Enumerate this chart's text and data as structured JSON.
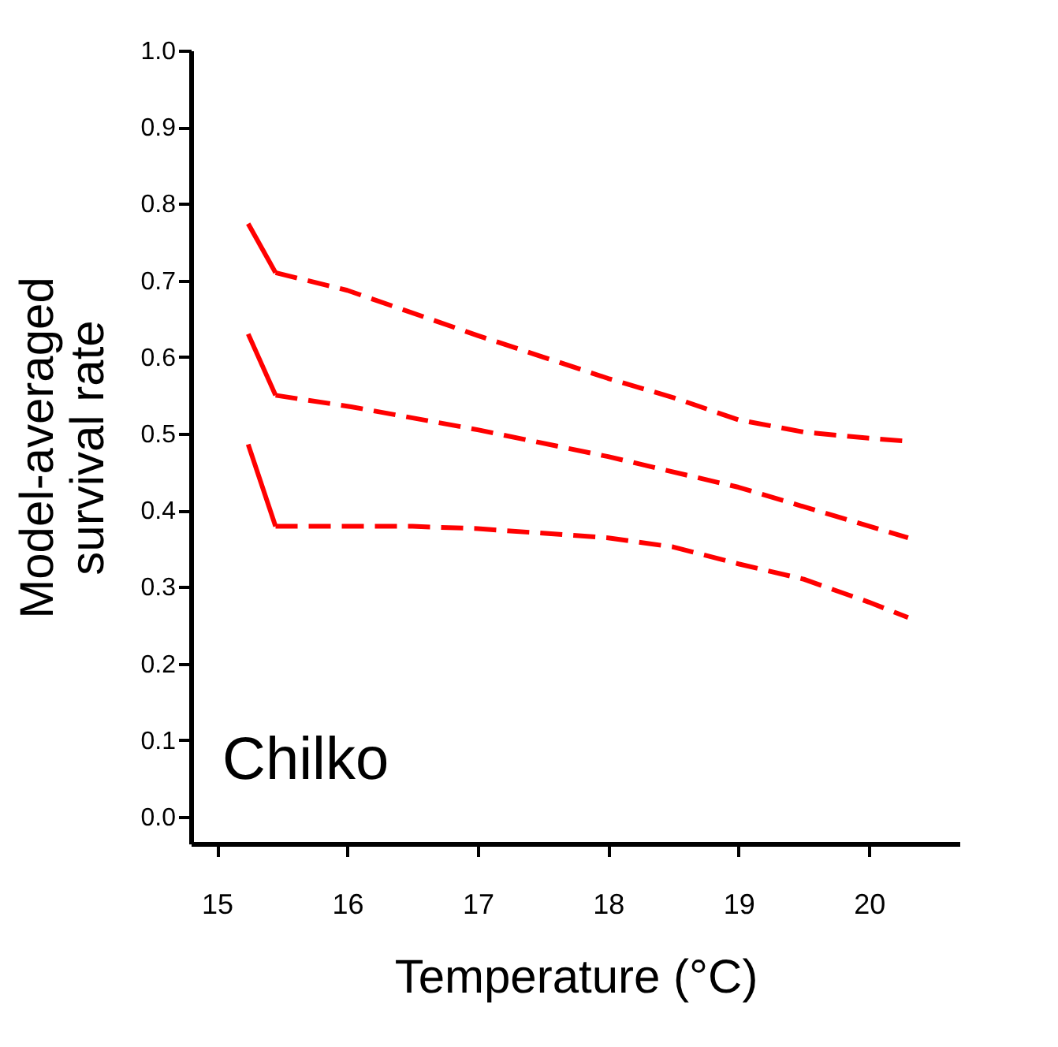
{
  "chart_data": {
    "type": "line",
    "xlabel": "Temperature (°C)",
    "ylabel": "Model-averaged\nsurvival rate",
    "annotations": [
      "Chilko"
    ],
    "xlim": [
      14.8,
      20.7
    ],
    "xticks": [
      15,
      16,
      17,
      18,
      19,
      20
    ],
    "ylim": [
      -0.035,
      1.0
    ],
    "yticks": [
      {
        "value": 0,
        "label": "0.0"
      },
      0.1,
      0.2,
      0.3,
      0.4,
      0.5,
      0.6,
      0.7,
      0.8,
      0.9,
      {
        "value": 1,
        "label": "1.0"
      }
    ],
    "grid": false,
    "legend": false,
    "marker": "none",
    "series": [
      {
        "color": "#ff0000",
        "line_style": "solid",
        "x": [
          15.24,
          15.45
        ],
        "values": [
          0.63,
          0.55
        ]
      },
      {
        "color": "#ff0000",
        "line_style": "dashed",
        "x": [
          15.45,
          16.03,
          17,
          18,
          19,
          20.3
        ],
        "values": [
          0.55,
          0.535,
          0.505,
          0.47,
          0.43,
          0.364
        ]
      },
      {
        "color": "#ff0000",
        "line_style": "solid",
        "x": [
          15.24,
          15.45
        ],
        "values": [
          0.774,
          0.71
        ]
      },
      {
        "color": "#ff0000",
        "line_style": "dashed",
        "x": [
          15.45,
          16,
          17,
          17.5,
          18,
          18.5,
          19,
          19.5,
          20,
          20.3
        ],
        "values": [
          0.71,
          0.687,
          0.628,
          0.6,
          0.572,
          0.547,
          0.518,
          0.502,
          0.494,
          0.49
        ]
      },
      {
        "color": "#ff0000",
        "line_style": "solid",
        "x": [
          15.24,
          15.45
        ],
        "values": [
          0.486,
          0.379
        ]
      },
      {
        "color": "#ff0000",
        "line_style": "dashed",
        "x": [
          15.45,
          16,
          16.5,
          17,
          17.5,
          18,
          18.5,
          19,
          19.5,
          20,
          20.3
        ],
        "values": [
          0.379,
          0.379,
          0.379,
          0.376,
          0.37,
          0.364,
          0.352,
          0.33,
          0.31,
          0.28,
          0.26
        ]
      }
    ]
  }
}
